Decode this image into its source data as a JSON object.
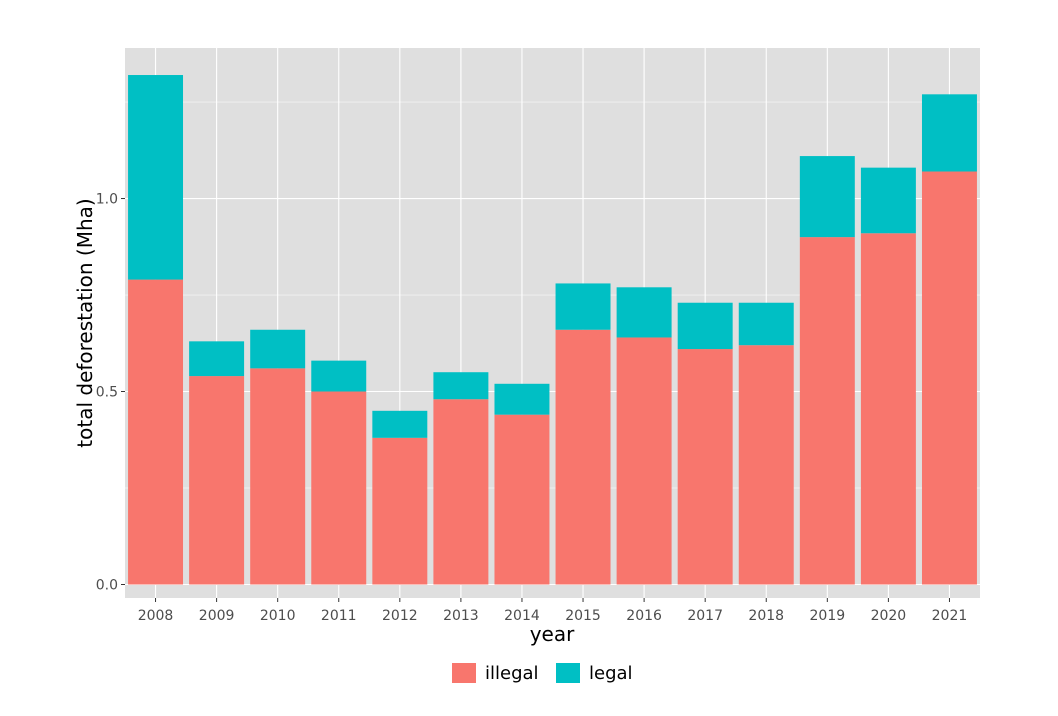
{
  "chart_data": {
    "type": "bar",
    "stacked": true,
    "title": "",
    "xlabel": "year",
    "ylabel": "total deforestation (Mha)",
    "categories": [
      "2008",
      "2009",
      "2010",
      "2011",
      "2012",
      "2013",
      "2014",
      "2015",
      "2016",
      "2017",
      "2018",
      "2019",
      "2020",
      "2021"
    ],
    "series": [
      {
        "name": "illegal",
        "color": "#F8766D",
        "values": [
          0.79,
          0.54,
          0.56,
          0.5,
          0.38,
          0.48,
          0.44,
          0.66,
          0.64,
          0.61,
          0.62,
          0.9,
          0.91,
          1.07
        ]
      },
      {
        "name": "legal",
        "color": "#00BFC4",
        "values": [
          0.53,
          0.09,
          0.1,
          0.08,
          0.07,
          0.07,
          0.08,
          0.12,
          0.13,
          0.12,
          0.11,
          0.21,
          0.17,
          0.2
        ]
      }
    ],
    "ylim": [
      -0.035,
      1.39
    ],
    "yticks": [
      0.0,
      0.5,
      1.0
    ],
    "ytick_labels": [
      "0.0",
      "0.5",
      "1.0"
    ],
    "grid": true,
    "panel_background": "#DFDFDF",
    "legend_position": "bottom"
  }
}
